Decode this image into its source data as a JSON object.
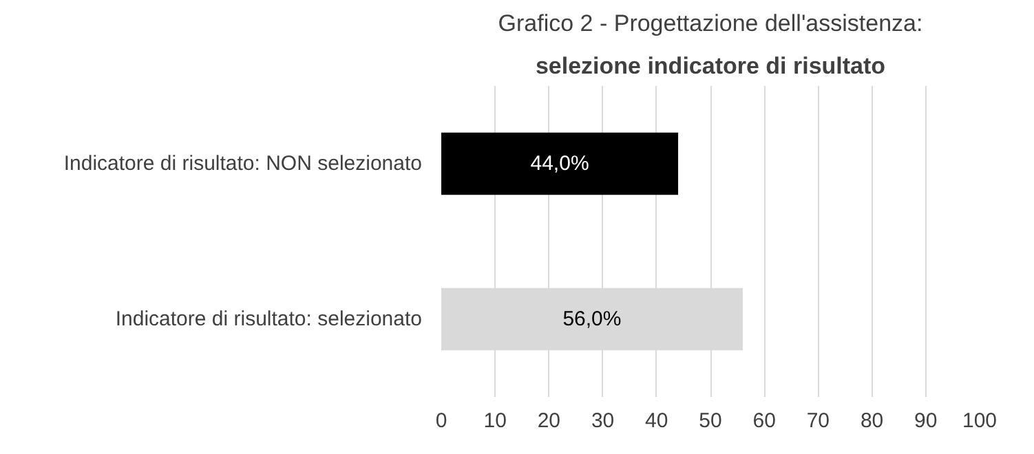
{
  "chart_data": {
    "type": "bar",
    "orientation": "horizontal",
    "title": "Grafico 2 - Progettazione dell'assistenza:",
    "subtitle": "selezione indicatore di risultato",
    "categories": [
      "Indicatore di risultato: NON selezionato",
      "Indicatore di risultato: selezionato"
    ],
    "values": [
      44,
      56
    ],
    "colors": [
      "#000000",
      "#d9d9d9"
    ],
    "value_labels": [
      "44,0%",
      "56,0%"
    ],
    "xlim": [
      0,
      100
    ],
    "xticks": [
      0,
      10,
      20,
      30,
      40,
      50,
      60,
      70,
      80,
      90,
      100
    ],
    "grid": "x"
  }
}
